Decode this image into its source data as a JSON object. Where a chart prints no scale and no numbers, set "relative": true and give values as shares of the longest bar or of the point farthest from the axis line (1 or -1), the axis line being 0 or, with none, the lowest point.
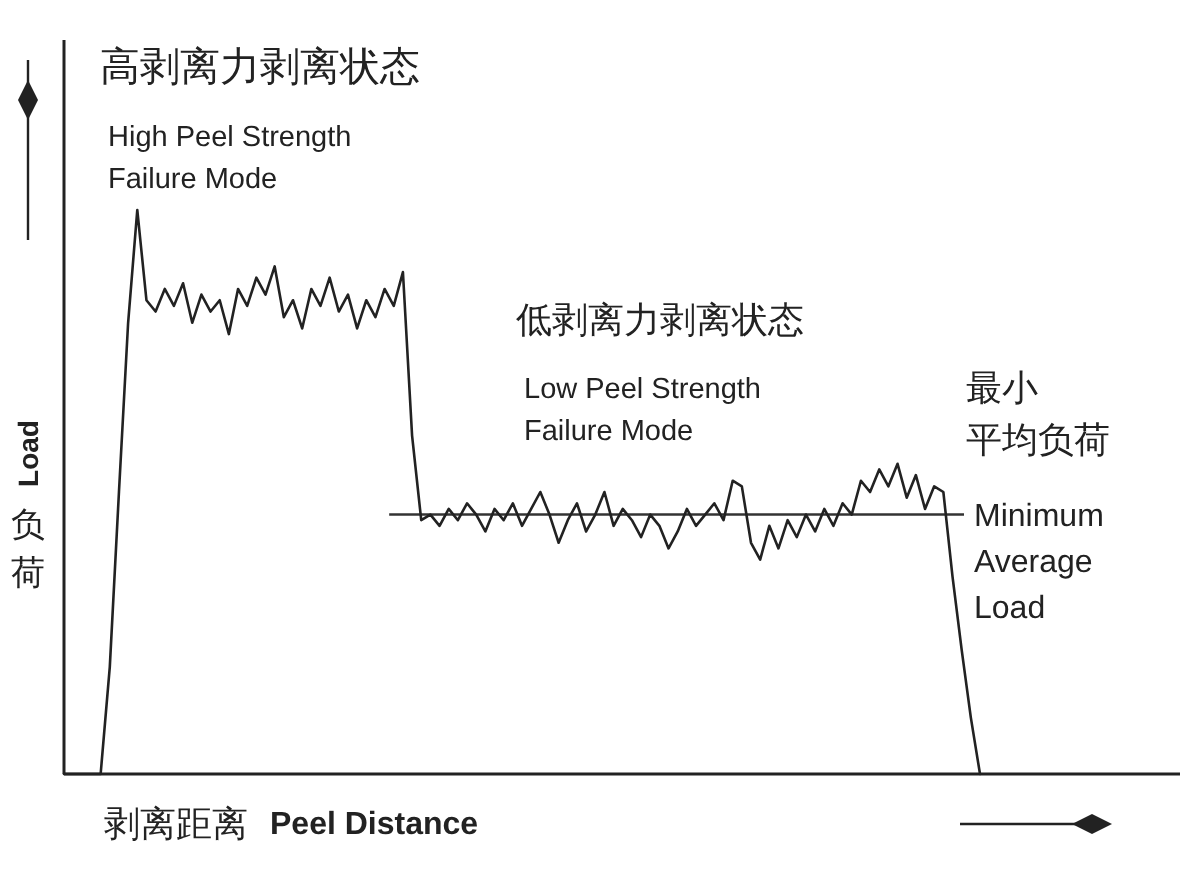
{
  "chart_data": {
    "type": "line",
    "relative": true,
    "color": "#222222",
    "marker": "none",
    "xlabel": "剥离距离 Peel Distance",
    "ylabel": "Load 负荷",
    "categories": [
      null,
      null,
      null,
      null,
      null,
      null,
      null,
      null,
      null,
      null,
      null,
      null,
      null,
      null,
      null,
      null,
      null,
      null,
      null,
      null,
      null,
      null,
      null,
      null,
      null,
      null,
      null,
      null,
      null,
      null,
      null,
      null,
      null,
      null,
      null,
      null,
      null,
      null,
      null,
      null,
      null,
      null,
      null,
      null,
      null,
      null,
      null,
      null,
      null,
      null,
      null,
      null,
      null,
      null,
      null,
      null,
      null,
      null,
      null,
      null,
      null,
      null,
      null,
      null,
      null,
      null,
      null,
      null,
      null,
      null,
      null,
      null,
      null,
      null,
      null,
      null,
      null,
      null,
      null,
      null,
      null,
      null,
      null,
      null,
      null,
      null,
      null,
      null,
      null,
      null,
      null,
      null,
      null,
      null,
      null,
      null,
      null,
      null,
      null,
      null,
      null
    ],
    "values": [
      0,
      0,
      0,
      0,
      0,
      0.19,
      0.5,
      0.8,
      1.0,
      0.84,
      0.82,
      0.86,
      0.83,
      0.87,
      0.8,
      0.85,
      0.82,
      0.84,
      0.78,
      0.86,
      0.83,
      0.88,
      0.85,
      0.9,
      0.81,
      0.84,
      0.79,
      0.86,
      0.83,
      0.88,
      0.82,
      0.85,
      0.79,
      0.84,
      0.81,
      0.86,
      0.83,
      0.89,
      0.6,
      0.45,
      0.46,
      0.44,
      0.47,
      0.45,
      0.48,
      0.46,
      0.43,
      0.47,
      0.45,
      0.48,
      0.44,
      0.47,
      0.5,
      0.46,
      0.41,
      0.45,
      0.48,
      0.43,
      0.46,
      0.5,
      0.44,
      0.47,
      0.45,
      0.42,
      0.46,
      0.44,
      0.4,
      0.43,
      0.47,
      0.44,
      0.46,
      0.48,
      0.45,
      0.52,
      0.51,
      0.41,
      0.38,
      0.44,
      0.4,
      0.45,
      0.42,
      0.46,
      0.43,
      0.47,
      0.44,
      0.48,
      0.46,
      0.52,
      0.5,
      0.54,
      0.51,
      0.55,
      0.49,
      0.53,
      0.47,
      0.51,
      0.5,
      0.35,
      0.22,
      0.1,
      0
    ],
    "ref_lines": [
      {
        "axis": "y",
        "value": 0.46,
        "color": "#333333",
        "label": "Minimum\nAverage\nLoad"
      }
    ],
    "annotations": [
      "高剥离力剥离状态\nHigh Peel Strength\nFailure Mode",
      "低剥离力剥离状态\nLow Peel Strength\nFailure Mode",
      "最小",
      "平均负荷"
    ]
  }
}
